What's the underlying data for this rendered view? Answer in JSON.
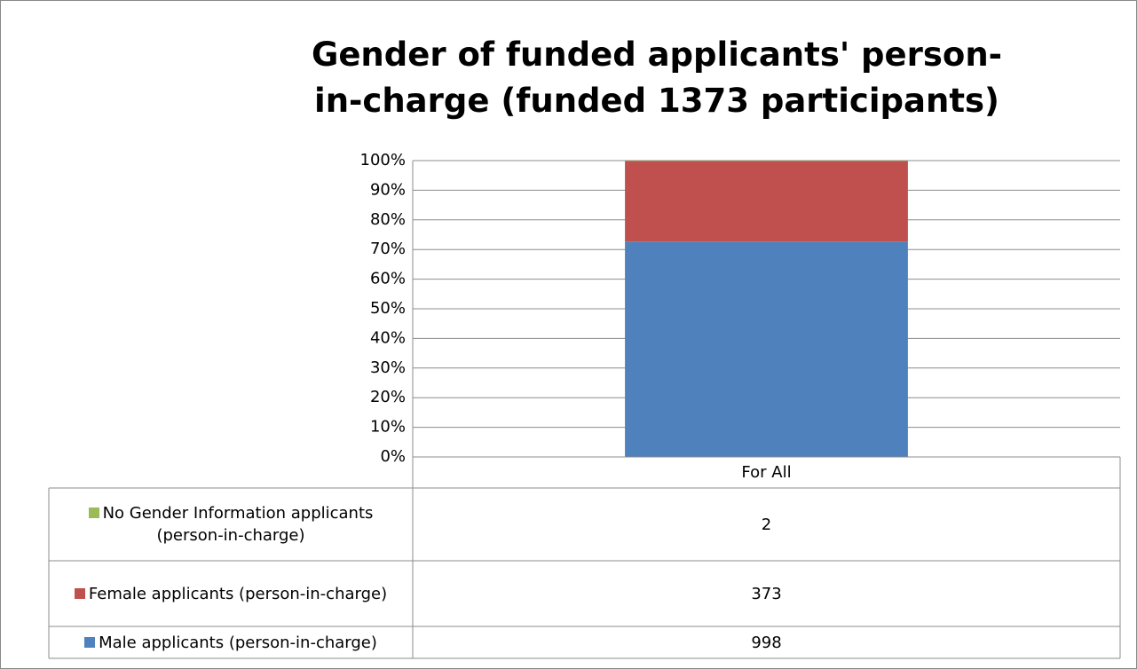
{
  "chart_data": {
    "type": "bar",
    "stacked": "percent",
    "title": "Gender of funded applicants' person-in-charge (funded 1373 participants)",
    "categories": [
      "For All"
    ],
    "series": [
      {
        "name": "Male applicants (person-in-charge)",
        "color": "#4f81bd",
        "values": [
          998
        ]
      },
      {
        "name": "Female applicants (person-in-charge)",
        "color": "#c0504d",
        "values": [
          373
        ]
      },
      {
        "name": "No Gender Information applicants (person-in-charge)",
        "color": "#9bbb59",
        "values": [
          2
        ]
      }
    ],
    "ylim": [
      0,
      100
    ],
    "yticks": [
      {
        "value": 0,
        "label": "0%"
      },
      {
        "value": 10,
        "label": "10%"
      },
      {
        "value": 20,
        "label": "20%"
      },
      {
        "value": 30,
        "label": "30%"
      },
      {
        "value": 40,
        "label": "40%"
      },
      {
        "value": 50,
        "label": "50%"
      },
      {
        "value": 60,
        "label": "60%"
      },
      {
        "value": 70,
        "label": "70%"
      },
      {
        "value": 80,
        "label": "80%"
      },
      {
        "value": 90,
        "label": "90%"
      },
      {
        "value": 100,
        "label": "100%"
      }
    ],
    "grid": true,
    "legend": "data-table"
  }
}
